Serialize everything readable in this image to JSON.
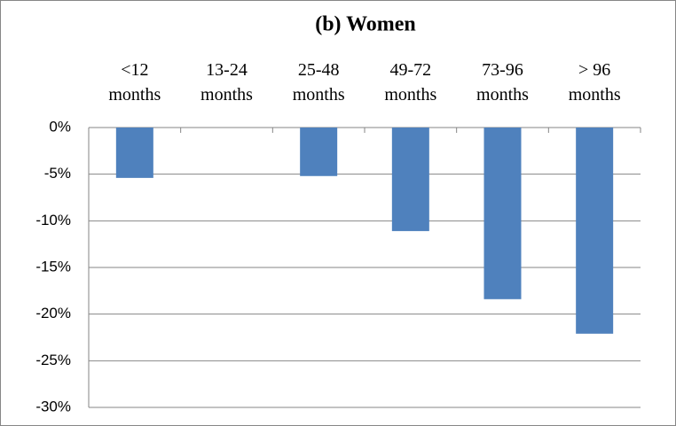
{
  "chart_data": {
    "type": "bar",
    "title": "(b) Women",
    "categories": [
      "<12 months",
      "13-24 months",
      "25-48 months",
      "49-72 months",
      "73-96 months",
      "> 96 months"
    ],
    "values": [
      -5.4,
      0,
      -5.2,
      -11.1,
      -18.4,
      -22.1
    ],
    "color": "#4f81bd",
    "ylim": [
      -30,
      0
    ],
    "yticks": [
      {
        "value": 0,
        "label": "0%"
      },
      {
        "value": -5,
        "label": "-5%"
      },
      {
        "value": -10,
        "label": "-10%"
      },
      {
        "value": -15,
        "label": "-15%"
      },
      {
        "value": -20,
        "label": "-20%"
      },
      {
        "value": -25,
        "label": "-25%"
      },
      {
        "value": -30,
        "label": "-30%"
      }
    ],
    "grid": true
  }
}
